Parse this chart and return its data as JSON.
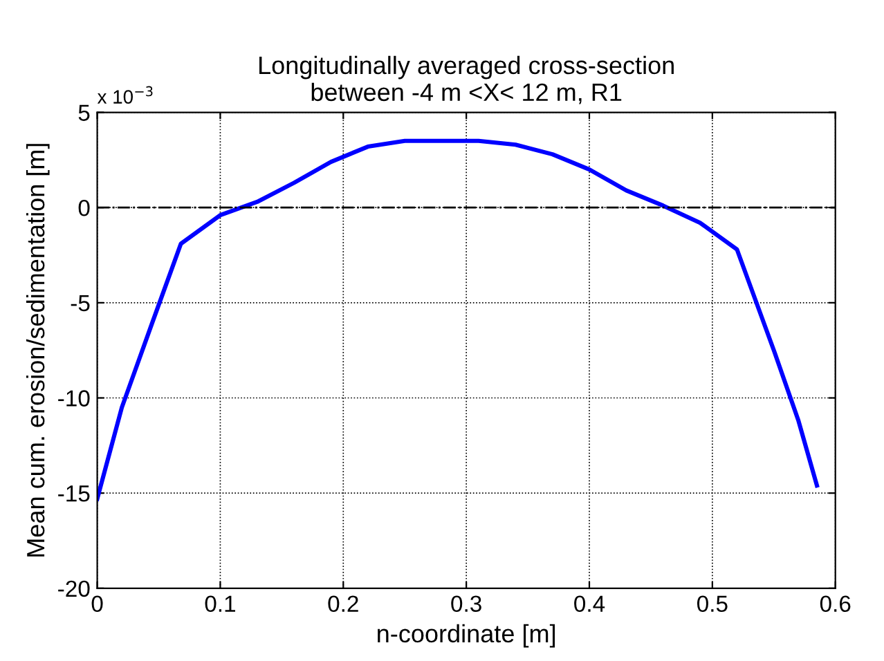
{
  "chart_data": {
    "type": "line",
    "title": "Longitudinally averaged cross-section\nbetween -4 m <X< 12 m, R1",
    "xlabel": "n-coordinate [m]",
    "ylabel": "Mean cum. erosion/sedimentation [m]",
    "annotations": [
      "x 10$^{−3}$"
    ],
    "x": [
      0,
      0.02,
      0.045,
      0.068,
      0.1,
      0.13,
      0.16,
      0.19,
      0.22,
      0.25,
      0.28,
      0.31,
      0.34,
      0.37,
      0.4,
      0.43,
      0.46,
      0.49,
      0.52,
      0.55,
      0.57,
      0.585
    ],
    "series": [
      {
        "color": "#0000ff",
        "values": [
          -15.3,
          -10.5,
          -6,
          -1.9,
          -0.4,
          0.3,
          1.3,
          2.4,
          3.2,
          3.5,
          3.5,
          3.5,
          3.3,
          2.8,
          2.0,
          0.9,
          0.1,
          -0.8,
          -2.2,
          -7.5,
          -11.2,
          -14.6
        ]
      }
    ],
    "xlim": [
      0,
      0.6
    ],
    "xticks": [
      0,
      0.1,
      0.2,
      0.3,
      0.4,
      0.5,
      0.6
    ],
    "ylim": [
      -20,
      5
    ],
    "yticks": [
      -20,
      -15,
      -10,
      -5,
      0,
      5
    ],
    "ref_lines": [
      {
        "axis": "y",
        "value": 0,
        "color": "#000000",
        "line_style": "dashdot"
      }
    ],
    "grid": true,
    "line_style": "solid",
    "marker": "none"
  }
}
